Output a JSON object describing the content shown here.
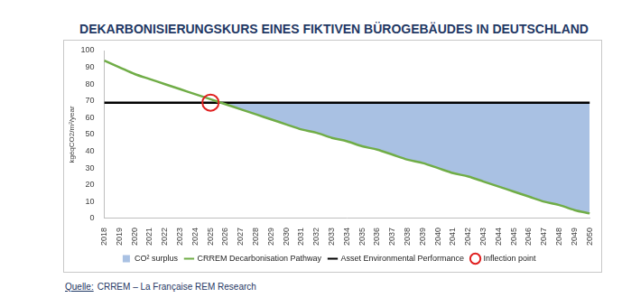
{
  "chart_data": {
    "type": "line",
    "title": "DEKARBONISIERUNGSKURS EINES FIKTIVEN BÜROGEBÄUDES IN DEUTSCHLAND",
    "y_label": "kgéqCO2/m²/year",
    "source_label": "Quelle:",
    "source": "CRREM – La Française REM Research",
    "categories": [
      "2018",
      "2019",
      "2020",
      "2021",
      "2022",
      "2023",
      "2024",
      "2025",
      "2026",
      "2027",
      "2028",
      "2029",
      "2030",
      "2031",
      "2032",
      "2033",
      "2034",
      "2035",
      "2036",
      "2037",
      "2038",
      "2039",
      "2040",
      "2041",
      "2042",
      "2043",
      "2044",
      "2045",
      "2046",
      "2047",
      "2048",
      "2049",
      "2050"
    ],
    "series": [
      {
        "name": "CO² surplus",
        "type": "area",
        "color": "#a9c1e3",
        "values": [
          69,
          69,
          69,
          69,
          69,
          69,
          69,
          69,
          69,
          69,
          69,
          69,
          69,
          69,
          69,
          69,
          69,
          69,
          69,
          69,
          69,
          69,
          69,
          69,
          69,
          69,
          69,
          69,
          69,
          69,
          69,
          69,
          69
        ]
      },
      {
        "name": "CRREM Decarbonisation Pathway",
        "type": "line",
        "color": "#70ad47",
        "values": [
          94,
          90,
          86,
          83,
          80,
          77,
          74,
          71,
          68,
          65,
          62,
          59,
          56,
          53,
          51,
          48,
          46,
          43,
          41,
          38,
          35,
          33,
          30,
          27,
          25,
          22,
          19,
          16,
          13,
          10,
          8,
          5,
          3
        ]
      },
      {
        "name": "Asset Environmental Performance",
        "type": "line",
        "color": "#000000",
        "values": [
          69,
          69,
          69,
          69,
          69,
          69,
          69,
          69,
          69,
          69,
          69,
          69,
          69,
          69,
          69,
          69,
          69,
          69,
          69,
          69,
          69,
          69,
          69,
          69,
          69,
          69,
          69,
          69,
          69,
          69,
          69,
          69,
          69
        ]
      },
      {
        "name": "Inflection point",
        "type": "scatter",
        "marker": "circle",
        "color": "#e02020",
        "values": [
          null,
          null,
          null,
          null,
          null,
          null,
          null,
          69,
          null,
          null,
          null,
          null,
          null,
          null,
          null,
          null,
          null,
          null,
          null,
          null,
          null,
          null,
          null,
          null,
          null,
          null,
          null,
          null,
          null,
          null,
          null,
          null,
          null
        ]
      }
    ],
    "ylim": [
      0,
      100
    ],
    "yticks": [
      0,
      10,
      20,
      30,
      40,
      50,
      60,
      70,
      80,
      90,
      100
    ],
    "grid": false,
    "legend": "bottom"
  }
}
